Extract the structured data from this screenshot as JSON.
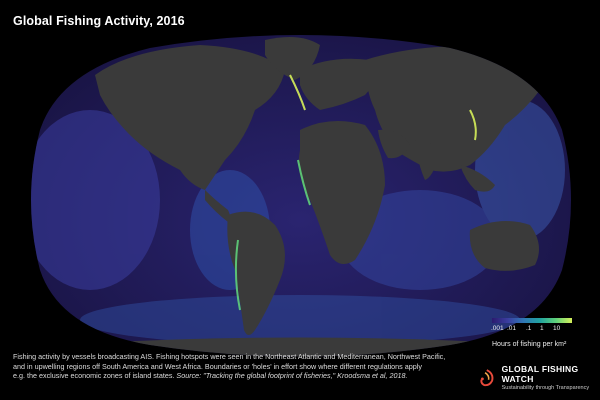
{
  "title": "Global Fishing Activity, 2016",
  "legend": {
    "ticks": [
      ".001",
      ".01",
      ".1",
      "1",
      "10"
    ],
    "label": "Hours of fishing per km²",
    "colors": [
      "#2b1a6e",
      "#3b3ea0",
      "#2f78b5",
      "#21a3a0",
      "#5fd07a",
      "#d6f05a"
    ]
  },
  "caption": {
    "line1": "Fishing activity by vessels broadcasting AIS. Fishing hotspots were seen in the Northeast Atlantic and Mediterranean, Northwest Pacific,",
    "line2": "and in upwelling regions off South America and West Africa. Boundaries or 'holes' in effort show where different regulations apply",
    "line3_plain": "e.g. the exclusive economic zones of island states. ",
    "line3_source": "Source: \"Tracking the global footprint of fisheries,\" Kroodsma et al, 2018."
  },
  "brand": {
    "name": "GLOBAL FISHING WATCH",
    "tagline": "Sustainability through Transparency",
    "logo_icon": "fish-hook-logo-icon"
  },
  "colors": {
    "land": "#3a3a3a",
    "ocean_low": "#1c1650",
    "ocean_mid": "#3a3fa0",
    "hotspot": "#d6f05a",
    "background": "#000000"
  }
}
